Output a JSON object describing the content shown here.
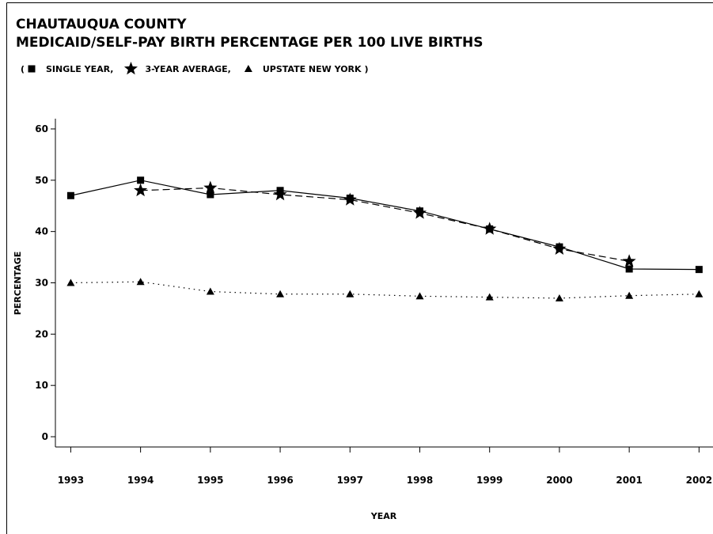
{
  "chart_data": {
    "type": "line",
    "title": "CHAUTAUQUA COUNTY",
    "subtitle": "MEDICAID/SELF-PAY BIRTH PERCENTAGE PER 100 LIVE BIRTHS",
    "legend_brackets": [
      "(",
      ")"
    ],
    "x_label": "YEAR",
    "y_label": "PERCENTAGE",
    "x": [
      1993,
      1994,
      1995,
      1996,
      1997,
      1998,
      1999,
      2000,
      2001,
      2002
    ],
    "series": [
      {
        "name": "SINGLE YEAR,",
        "color": "#000000",
        "marker": "square",
        "dash": "solid",
        "values": [
          47,
          50,
          47.2,
          48,
          46.5,
          44,
          40.5,
          37,
          32.7,
          32.6
        ]
      },
      {
        "name": "3-YEAR AVERAGE,",
        "color": "#000000",
        "marker": "star",
        "dash": "dashed",
        "values": [
          null,
          48,
          48.5,
          47.2,
          46.2,
          43.6,
          40.5,
          36.6,
          34.2,
          null
        ]
      },
      {
        "name": "UPSTATE NEW YORK",
        "color": "#000000",
        "marker": "triangle",
        "dash": "dotted",
        "values": [
          30,
          30.2,
          28.3,
          27.8,
          27.8,
          27.4,
          27.2,
          27,
          27.5,
          27.8
        ]
      }
    ],
    "xlim": [
      1992.78,
      2002.2
    ],
    "xticks": [
      1993,
      1994,
      1995,
      1996,
      1997,
      1998,
      1999,
      2000,
      2001,
      2002
    ],
    "ylim": [
      -2,
      62
    ],
    "yticks": [
      0,
      10,
      20,
      30,
      40,
      50,
      60
    ]
  }
}
